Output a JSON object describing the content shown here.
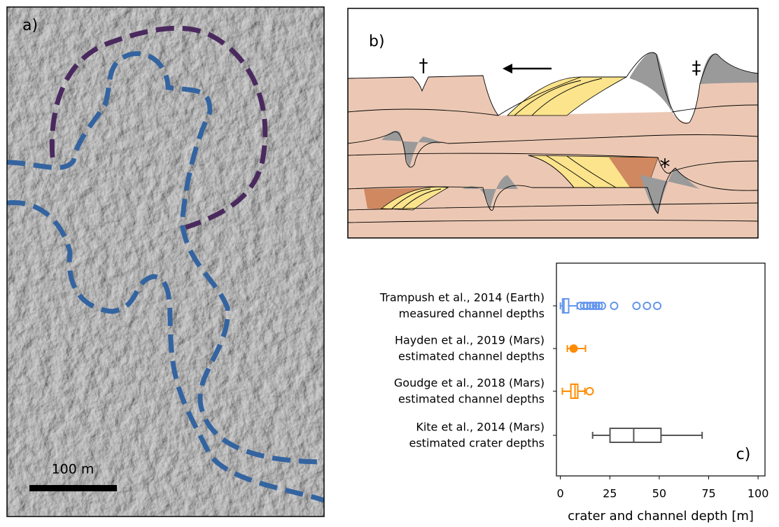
{
  "panel_a": {
    "label": "a)",
    "scale_bar_label": "100 m"
  },
  "panel_b": {
    "label": "b)",
    "markers": [
      "†",
      "‡",
      "*"
    ]
  },
  "chart_data": {
    "type": "boxplot",
    "label": "c)",
    "xlabel": "crater and channel depth [m]",
    "xlim": [
      -2,
      103.5
    ],
    "xticks": [
      0,
      25,
      50,
      75,
      100
    ],
    "groups": [
      {
        "name": [
          "Trampush et al., 2014 (Earth)",
          "measured channel depths"
        ],
        "color": "#6495ed",
        "whislo": 0,
        "q1": 1.1,
        "med": 1.8,
        "q3": 4.2,
        "whishi": 8.5,
        "fliers": [
          10.2,
          12,
          13.4,
          15.2,
          16.6,
          18,
          19.4,
          21,
          27.2,
          38.5,
          43.8,
          49
        ]
      },
      {
        "name": [
          "Hayden et al., 2019 (Mars)",
          "estimated channel depths"
        ],
        "color": "#ff8c00",
        "whislo": 3.5,
        "mean": 6.7,
        "whishi": 12.7
      },
      {
        "name": [
          "Goudge et al., 2018 (Mars)",
          "estimated channel depths"
        ],
        "color": "#ff8c00",
        "whislo": 1,
        "q1": 5.3,
        "med": 7.4,
        "q3": 8.8,
        "whishi": 12.4,
        "fliers": [
          14.8
        ]
      },
      {
        "name": [
          "Kite et al., 2014 (Mars)",
          "estimated crater depths"
        ],
        "color": "#555555",
        "whislo": 16.3,
        "q1": 25.1,
        "med": 37.1,
        "q3": 50.9,
        "whishi": 71.7
      }
    ]
  }
}
